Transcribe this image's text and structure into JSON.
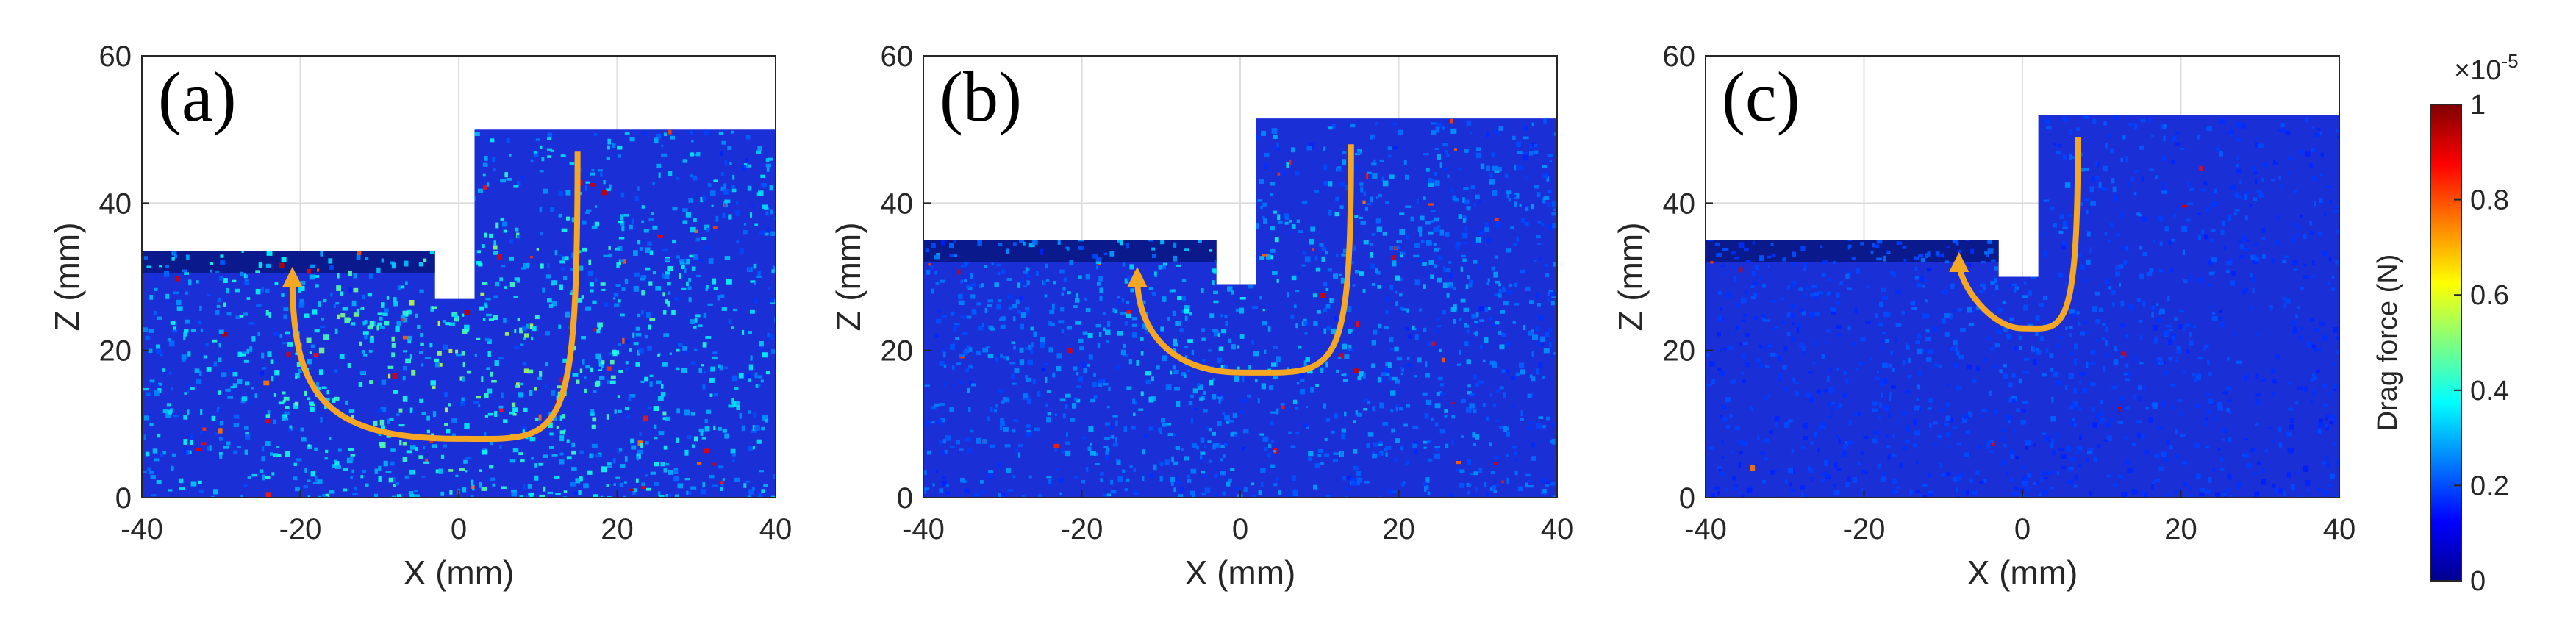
{
  "chart_data": {
    "type": "heatmap",
    "panels": [
      {
        "id": "a",
        "label": "(a)",
        "xlabel": "X (mm)",
        "ylabel": "Z (mm)",
        "xlim": [
          -40,
          40
        ],
        "ylim": [
          0,
          60
        ],
        "xticks": [
          -40,
          -20,
          0,
          20,
          40
        ],
        "yticks": [
          0,
          20,
          40,
          60
        ],
        "grid": true,
        "surface": {
          "left_height": 33.5,
          "notch_x": [
            -3,
            2
          ],
          "notch_bottom": 27,
          "right_height": 50
        },
        "flow_arrow": {
          "from": [
            15,
            47
          ],
          "bottom": [
            0,
            8
          ],
          "to": [
            -21,
            30
          ],
          "color": "#F5A623"
        },
        "intensity": 0.55
      },
      {
        "id": "b",
        "label": "(b)",
        "xlabel": "X (mm)",
        "ylabel": "Z (mm)",
        "xlim": [
          -40,
          40
        ],
        "ylim": [
          0,
          60
        ],
        "xticks": [
          -40,
          -20,
          0,
          20,
          40
        ],
        "yticks": [
          0,
          20,
          40,
          60
        ],
        "grid": true,
        "surface": {
          "left_height": 35,
          "notch_x": [
            -3,
            2
          ],
          "notch_bottom": 29,
          "right_height": 51.5
        },
        "flow_arrow": {
          "from": [
            14,
            48
          ],
          "bottom": [
            0,
            17
          ],
          "to": [
            -13,
            30
          ],
          "color": "#F5A623"
        },
        "intensity": 0.32
      },
      {
        "id": "c",
        "label": "(c)",
        "xlabel": "X (mm)",
        "ylabel": "Z (mm)",
        "xlim": [
          -40,
          40
        ],
        "ylim": [
          0,
          60
        ],
        "xticks": [
          -40,
          -20,
          0,
          20,
          40
        ],
        "yticks": [
          0,
          20,
          40,
          60
        ],
        "grid": true,
        "surface": {
          "left_height": 35,
          "notch_x": [
            -3,
            2
          ],
          "notch_bottom": 30,
          "right_height": 52
        },
        "flow_arrow": {
          "from": [
            7,
            49
          ],
          "bottom": [
            0,
            23
          ],
          "to": [
            -8,
            32
          ],
          "color": "#F5A623"
        },
        "intensity": 0.14
      }
    ],
    "colorbar": {
      "label": "Drag force (N)",
      "multiplier": "×10-5",
      "multiplier_base": "×10",
      "multiplier_exp": "-5",
      "range": [
        0,
        1
      ],
      "ticks": [
        "0",
        "0.2",
        "0.4",
        "0.6",
        "0.8",
        "1"
      ],
      "colormap": "jet"
    }
  }
}
